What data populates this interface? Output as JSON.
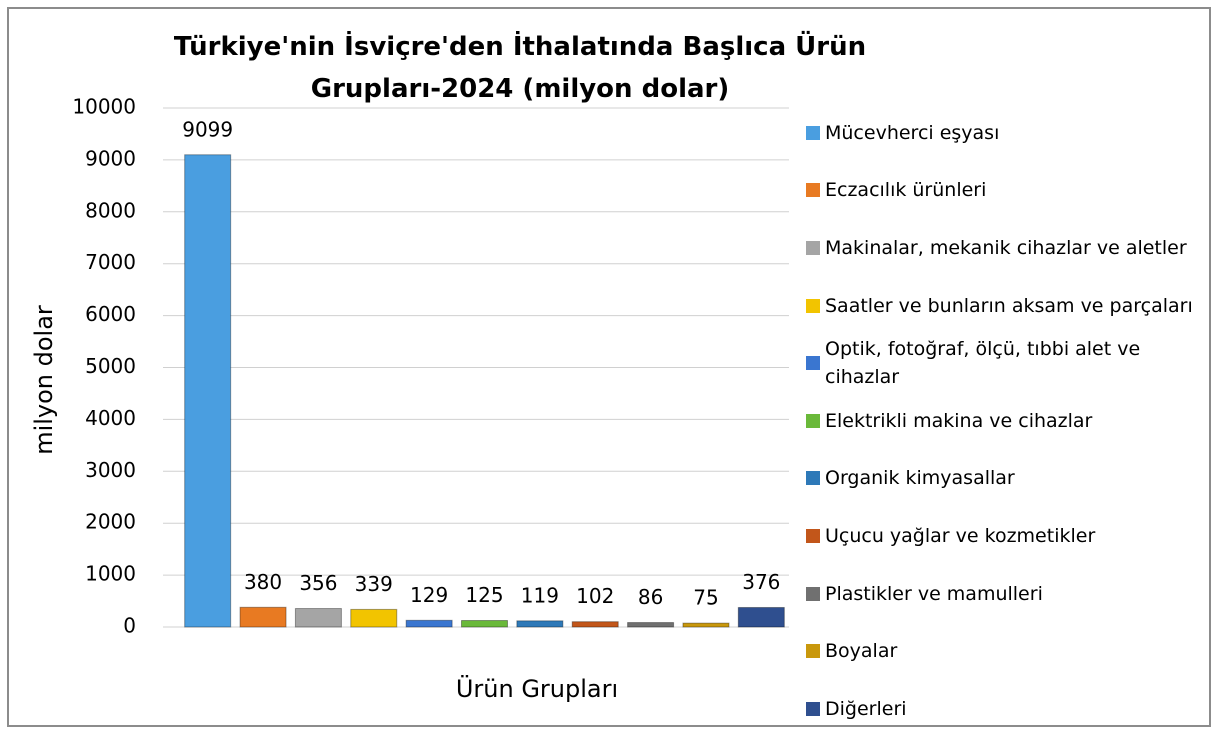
{
  "chart_data": {
    "type": "bar",
    "title": "Türkiye'nin İsviçre'den İthalatında Başlıca Ürün Grupları-2024 (milyon dolar)",
    "y_label": "milyon dolar",
    "x_label": "Ürün Grupları",
    "categories": [
      "Mücevherci eşyası",
      "Eczacılık ürünleri",
      "Makinalar, mekanik cihazlar ve aletler",
      "Saatler ve bunların aksam ve parçaları",
      "Optik, fotoğraf, ölçü, tıbbi alet ve cihazlar",
      "Elektrikli makina ve cihazlar",
      "Organik kimyasallar",
      "Uçucu yağlar ve kozmetikler",
      "Plastikler ve mamulleri",
      "Boyalar",
      "Diğerleri"
    ],
    "values": [
      9099,
      380,
      356,
      339,
      129,
      125,
      119,
      102,
      86,
      75,
      376
    ],
    "colors": [
      "#4a9ee0",
      "#e87a22",
      "#a5a5a5",
      "#f2c400",
      "#3a76d0",
      "#6ab93a",
      "#2e79b8",
      "#c2561a",
      "#707070",
      "#c9980c",
      "#2f4f8f"
    ],
    "ylim": [
      0,
      10000
    ],
    "yticks": [
      0,
      1000,
      2000,
      3000,
      4000,
      5000,
      6000,
      7000,
      8000,
      9000,
      10000
    ],
    "grid": true,
    "legend": "right"
  }
}
